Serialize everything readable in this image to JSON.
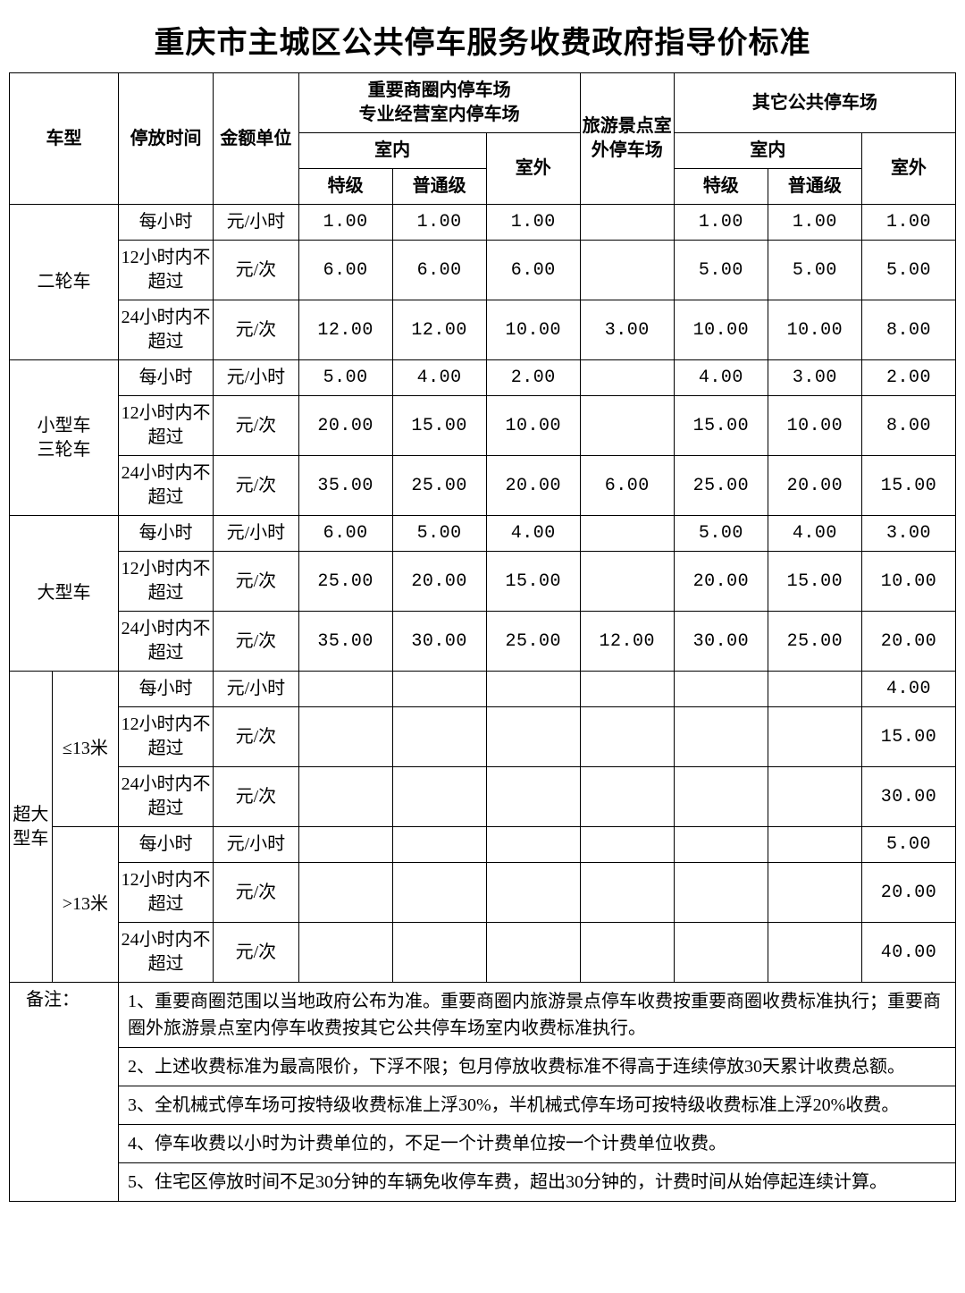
{
  "title": "重庆市主城区公共停车服务收费政府指导价标准",
  "headers": {
    "vehicle_type": "车型",
    "parking_time": "停放时间",
    "unit": "金额单位",
    "group_a": "重要商圈内停车场\n专业经营室内停车场",
    "group_a_indoor": "室内",
    "group_a_outdoor": "室外",
    "group_a_special": "特级",
    "group_a_normal": "普通级",
    "scenic": "旅游景点室外停车场",
    "group_c": "其它公共停车场",
    "group_c_indoor": "室内",
    "group_c_outdoor": "室外",
    "group_c_special": "特级",
    "group_c_normal": "普通级"
  },
  "time_labels": {
    "per_hour": "每小时",
    "within12": "12小时内不超过",
    "within24": "24小时内不超过"
  },
  "unit_labels": {
    "per_hour": "元/小时",
    "per_time": "元/次"
  },
  "types": {
    "two_wheel": "二轮车",
    "small_tri": "小型车\n三轮车",
    "large": "大型车",
    "extra_large": "超大型车",
    "lte13": "≤13米",
    "gt13": ">13米"
  },
  "rows": {
    "two_wheel": {
      "r1": [
        "1.00",
        "1.00",
        "1.00",
        "",
        "1.00",
        "1.00",
        "1.00"
      ],
      "r2": [
        "6.00",
        "6.00",
        "6.00",
        "",
        "5.00",
        "5.00",
        "5.00"
      ],
      "r3": [
        "12.00",
        "12.00",
        "10.00",
        "3.00",
        "10.00",
        "10.00",
        "8.00"
      ]
    },
    "small_tri": {
      "r1": [
        "5.00",
        "4.00",
        "2.00",
        "",
        "4.00",
        "3.00",
        "2.00"
      ],
      "r2": [
        "20.00",
        "15.00",
        "10.00",
        "",
        "15.00",
        "10.00",
        "8.00"
      ],
      "r3": [
        "35.00",
        "25.00",
        "20.00",
        "6.00",
        "25.00",
        "20.00",
        "15.00"
      ]
    },
    "large": {
      "r1": [
        "6.00",
        "5.00",
        "4.00",
        "",
        "5.00",
        "4.00",
        "3.00"
      ],
      "r2": [
        "25.00",
        "20.00",
        "15.00",
        "",
        "20.00",
        "15.00",
        "10.00"
      ],
      "r3": [
        "35.00",
        "30.00",
        "25.00",
        "12.00",
        "30.00",
        "25.00",
        "20.00"
      ]
    },
    "xl_lte13": {
      "r1": [
        "",
        "",
        "",
        "",
        "",
        "",
        "4.00"
      ],
      "r2": [
        "",
        "",
        "",
        "",
        "",
        "",
        "15.00"
      ],
      "r3": [
        "",
        "",
        "",
        "",
        "",
        "",
        "30.00"
      ]
    },
    "xl_gt13": {
      "r1": [
        "",
        "",
        "",
        "",
        "",
        "",
        "5.00"
      ],
      "r2": [
        "",
        "",
        "",
        "",
        "",
        "",
        "20.00"
      ],
      "r3": [
        "",
        "",
        "",
        "",
        "",
        "",
        "40.00"
      ]
    }
  },
  "notes": {
    "label": "备注：",
    "n1": "1、重要商圈范围以当地政府公布为准。重要商圈内旅游景点停车收费按重要商圈收费标准执行；重要商圈外旅游景点室内停车收费按其它公共停车场室内收费标准执行。",
    "n2": "2、上述收费标准为最高限价，下浮不限；包月停放收费标准不得高于连续停放30天累计收费总额。",
    "n3": "3、全机械式停车场可按特级收费标准上浮30%，半机械式停车场可按特级收费标准上浮20%收费。",
    "n4": "4、停车收费以小时为计费单位的，不足一个计费单位按一个计费单位收费。",
    "n5": "5、住宅区停放时间不足30分钟的车辆免收停车费，超出30分钟的，计费时间从始停起连续计算。"
  }
}
